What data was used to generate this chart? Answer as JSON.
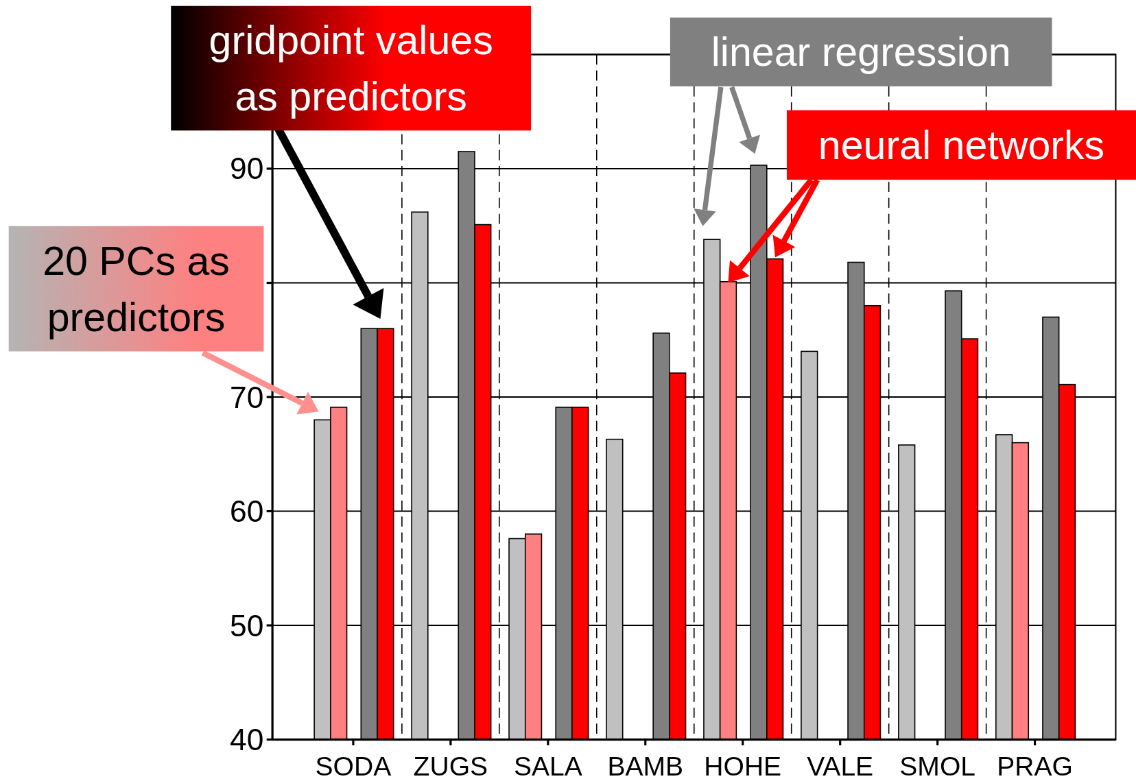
{
  "chart_data": {
    "type": "bar",
    "categories": [
      "SODA",
      "ZUGS",
      "SALA",
      "BAMB",
      "HOHE",
      "VALE",
      "SMOL",
      "PRAG"
    ],
    "series": [
      {
        "color": "#c0c0c0",
        "values": [
          68.0,
          86.2,
          57.6,
          66.3,
          83.8,
          74.0,
          65.8,
          66.7
        ]
      },
      {
        "color": "#ff8080",
        "values": [
          69.1,
          null,
          58.0,
          null,
          80.1,
          null,
          null,
          66.0
        ]
      },
      {
        "color": "#808080",
        "values": [
          76.0,
          91.5,
          69.1,
          75.6,
          90.3,
          81.8,
          79.3,
          77.0
        ]
      },
      {
        "color": "#ff0000",
        "values": [
          76.0,
          85.1,
          69.1,
          72.1,
          82.1,
          78.0,
          75.1,
          71.1
        ]
      }
    ],
    "ylim": [
      40,
      100
    ],
    "yticks": [
      40,
      50,
      60,
      70,
      {
        "value": 80,
        "label": null
      },
      90,
      {
        "value": 100,
        "label": null
      }
    ],
    "grid": true,
    "annotations": [
      "gridpoint values as predictors",
      "20 PCs as predictors",
      "linear regression",
      "neural networks"
    ]
  }
}
